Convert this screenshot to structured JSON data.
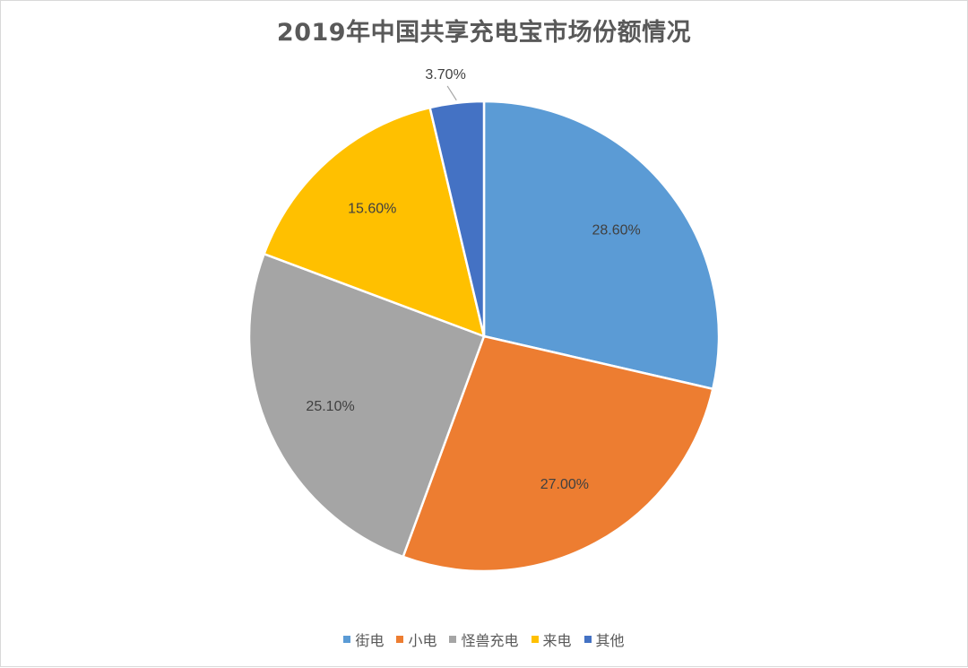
{
  "chart_data": {
    "type": "pie",
    "title": "2019年中国共享充电宝市场份额情况",
    "categories": [
      "街电",
      "小电",
      "怪兽充电",
      "来电",
      "其他"
    ],
    "values": [
      28.6,
      27.0,
      25.1,
      15.6,
      3.7
    ],
    "labels": [
      "28.60%",
      "27.00%",
      "25.10%",
      "15.60%",
      "3.70%"
    ],
    "colors": [
      "#5B9BD5",
      "#ED7D31",
      "#A5A5A5",
      "#FFC000",
      "#4472C4"
    ],
    "legend_position": "bottom",
    "start_angle_deg": 0,
    "direction": "clockwise"
  }
}
